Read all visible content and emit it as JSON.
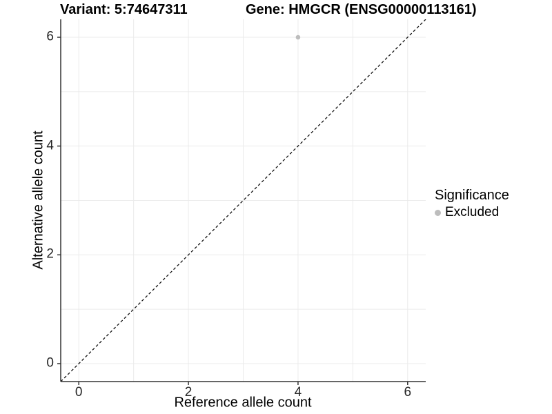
{
  "titles": {
    "variant": "Variant: 5:74647311",
    "gene": "Gene: HMGCR (ENSG00000113161)"
  },
  "axes": {
    "x": {
      "label": "Reference allele count",
      "ticks": [
        "0",
        "2",
        "4",
        "6"
      ]
    },
    "y": {
      "label": "Alternative allele count",
      "ticks": [
        "0",
        "2",
        "4",
        "6"
      ]
    }
  },
  "legend": {
    "title": "Significance",
    "items": [
      {
        "label": "Excluded",
        "color": "#bdbdbd"
      }
    ]
  },
  "colors": {
    "point": "#bdbdbd",
    "grid": "#ebebeb",
    "axis": "#333333",
    "dashed_line": "#111111",
    "tick_text": "#262626"
  },
  "chart_data": {
    "type": "scatter",
    "title": "Variant: 5:74647311 | Gene: HMGCR (ENSG00000113161)",
    "xlabel": "Reference allele count",
    "ylabel": "Alternative allele count",
    "xlim": [
      -0.33,
      6.33
    ],
    "ylim": [
      -0.33,
      6.33
    ],
    "xticks": [
      0,
      2,
      4,
      6
    ],
    "yticks": [
      0,
      2,
      4,
      6
    ],
    "grid": true,
    "grid_interval": 1,
    "grid_range": [
      0,
      6
    ],
    "legend_position": "right",
    "series": [
      {
        "name": "Excluded",
        "color": "#bdbdbd",
        "points": [
          {
            "x": 4,
            "y": 6
          }
        ]
      }
    ],
    "reference_line": {
      "type": "identity",
      "slope": 1,
      "intercept": 0,
      "style": "dashed",
      "color": "#111111"
    }
  }
}
